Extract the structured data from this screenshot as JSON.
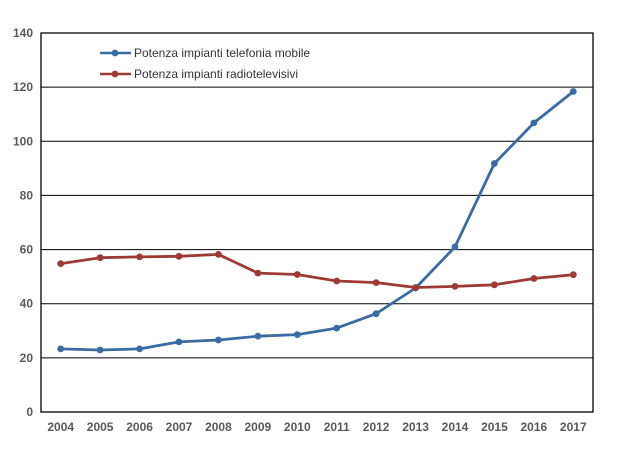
{
  "chart_data": {
    "type": "line",
    "title": "",
    "xlabel": "",
    "ylabel": "",
    "categories": [
      "2004",
      "2005",
      "2006",
      "2007",
      "2008",
      "2009",
      "2010",
      "2011",
      "2012",
      "2013",
      "2014",
      "2015",
      "2016",
      "2017"
    ],
    "series": [
      {
        "name": "Potenza impianti telefonia mobile",
        "color": "#3a6ba3",
        "marker": "circle",
        "values": [
          23.3,
          22.9,
          23.3,
          25.9,
          26.6,
          28.0,
          28.6,
          31.0,
          36.3,
          45.8,
          61.0,
          91.8,
          106.8,
          118.4
        ]
      },
      {
        "name": "Potenza impianti radiotelevisivi",
        "color": "#9e3a34",
        "marker": "circle",
        "values": [
          54.8,
          57.0,
          57.3,
          57.5,
          58.2,
          51.3,
          50.8,
          48.4,
          47.8,
          46.0,
          46.4,
          47.0,
          49.3,
          50.7
        ]
      }
    ],
    "ylim": [
      0,
      140
    ],
    "yticks": [
      0,
      20,
      40,
      60,
      80,
      100,
      120,
      140
    ],
    "ytick_step": 20,
    "grid": true,
    "legend_position": "top-left-inside",
    "axis_text_color": "#595959",
    "grid_color": "#000000",
    "plot_border_color": "#000000",
    "background_color": "#ffffff"
  }
}
